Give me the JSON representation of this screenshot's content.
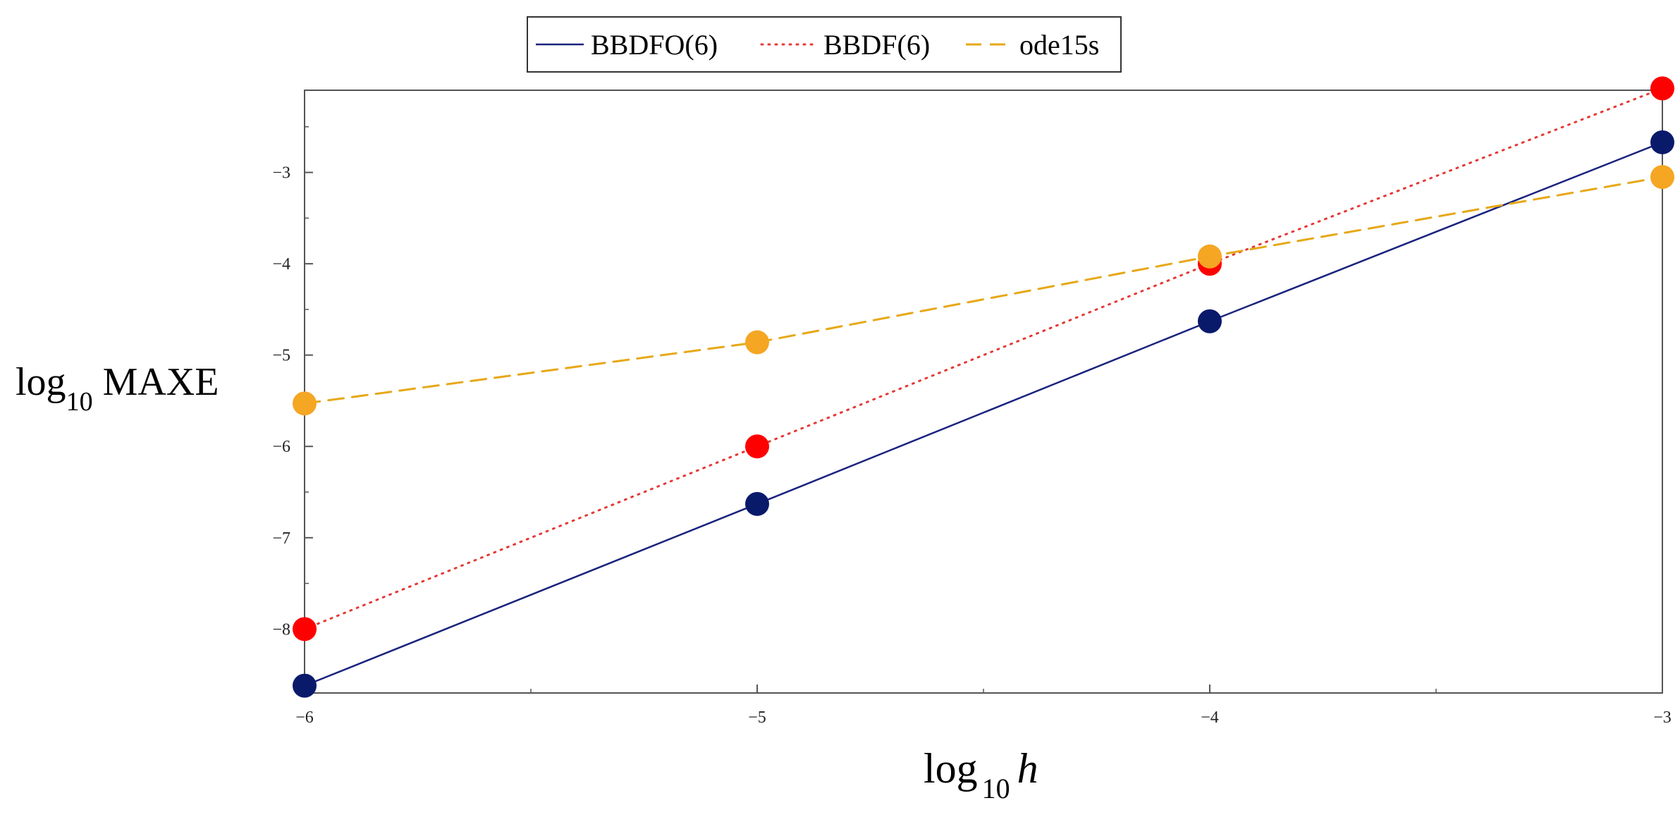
{
  "chart_data": {
    "type": "line",
    "xlabel": {
      "base": "log",
      "sub": "10",
      "var": "h"
    },
    "ylabel": {
      "base": "log",
      "sub": "10",
      "var": "MAXE"
    },
    "xlim": [
      -6,
      -3
    ],
    "ylim": [
      -8.7,
      -2.1
    ],
    "x_ticks": [
      -6,
      -5,
      -4,
      -3
    ],
    "x_tick_labels": [
      "−6",
      "−5",
      "−4",
      "−3"
    ],
    "y_ticks": [
      -8,
      -7,
      -6,
      -5,
      -4,
      -3
    ],
    "y_tick_labels": [
      "−8",
      "−7",
      "−6",
      "−5",
      "−4",
      "−3"
    ],
    "grid": false,
    "legend_position": "top",
    "series": [
      {
        "name": "BBDFO(6)",
        "color": "#1a237e",
        "marker_color": "#0a1a6b",
        "line_style": "solid",
        "x": [
          -6,
          -5,
          -4,
          -3
        ],
        "y": [
          -8.62,
          -6.63,
          -4.63,
          -2.67
        ]
      },
      {
        "name": "BBDF(6)",
        "color": "#e53935",
        "marker_color": "#ff0000",
        "line_style": "dotted",
        "x": [
          -6,
          -5,
          -4,
          -3
        ],
        "y": [
          -8.0,
          -6.0,
          -4.0,
          -2.08
        ]
      },
      {
        "name": "ode15s",
        "color": "#e6a817",
        "marker_color": "#f5a623",
        "line_style": "dashed",
        "x": [
          -6,
          -5,
          -4,
          -3
        ],
        "y": [
          -5.53,
          -4.86,
          -3.92,
          -3.05
        ]
      }
    ]
  }
}
